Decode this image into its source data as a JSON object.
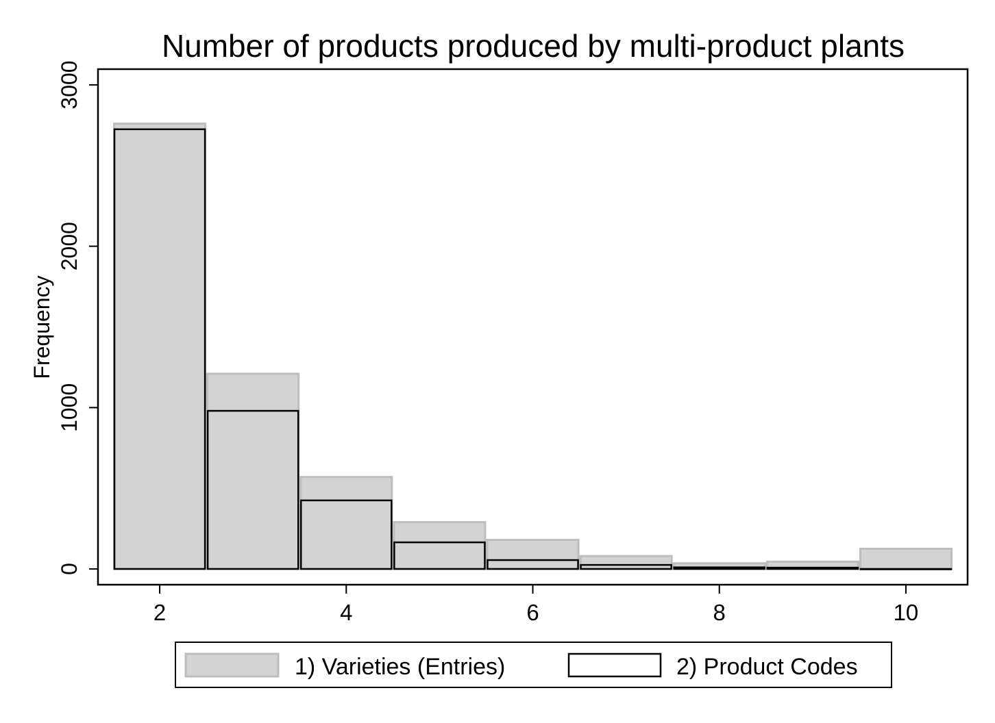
{
  "chart_data": {
    "type": "bar",
    "title": "Number of products produced by multi-product plants",
    "xlabel": "",
    "ylabel": "Frequency",
    "xlim": [
      1.5,
      10.5
    ],
    "ylim": [
      0,
      3000
    ],
    "x_ticks": [
      2,
      4,
      6,
      8,
      10
    ],
    "y_ticks": [
      0,
      1000,
      2000,
      3000
    ],
    "bins": [
      {
        "from": 1.5,
        "to": 2.5
      },
      {
        "from": 2.5,
        "to": 3.5
      },
      {
        "from": 3.5,
        "to": 4.5
      },
      {
        "from": 4.5,
        "to": 5.5
      },
      {
        "from": 5.5,
        "to": 6.5
      },
      {
        "from": 6.5,
        "to": 7.5
      },
      {
        "from": 7.5,
        "to": 8.5
      },
      {
        "from": 8.5,
        "to": 9.5
      },
      {
        "from": 9.5,
        "to": 10.5
      }
    ],
    "series": [
      {
        "name": "1) Varieties (Entries)",
        "values": [
          2760,
          1210,
          570,
          290,
          180,
          80,
          35,
          45,
          125
        ],
        "fill": "#d3d3d3",
        "stroke": "#bdbdbd"
      },
      {
        "name": "2) Product Codes",
        "values": [
          2725,
          980,
          425,
          165,
          55,
          25,
          10,
          8,
          0
        ],
        "fill": "none",
        "stroke": "#000000"
      }
    ],
    "grid": false,
    "legend_position": "bottom"
  }
}
